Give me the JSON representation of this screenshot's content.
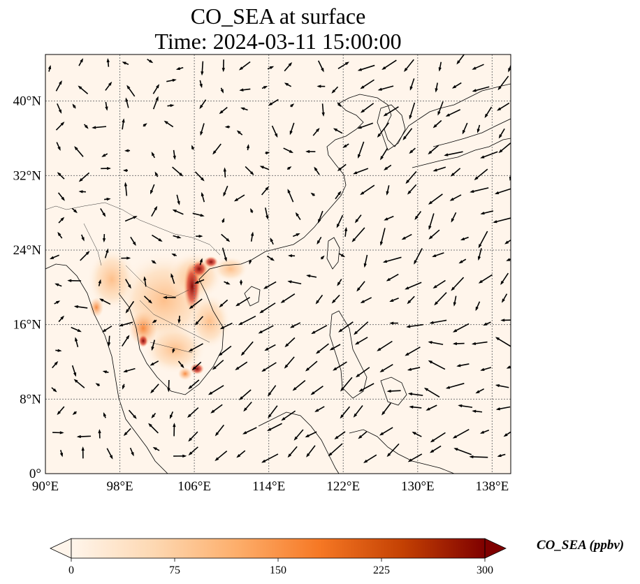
{
  "title": "CO_SEA at surface",
  "subtitle": "Time: 2024-03-11 15:00:00",
  "map": {
    "lon_range": [
      90,
      140
    ],
    "lat_range": [
      0,
      45
    ],
    "lon_ticks": [
      "90°E",
      "98°E",
      "106°E",
      "114°E",
      "122°E",
      "130°E",
      "138°E"
    ],
    "lat_ticks": [
      "0°",
      "8°N",
      "16°N",
      "24°N",
      "32°N",
      "40°N"
    ],
    "lon_tick_values": [
      90,
      98,
      106,
      114,
      122,
      130,
      138
    ],
    "lat_tick_values": [
      0,
      8,
      16,
      24,
      32,
      40
    ],
    "gridlines": true,
    "background_color": "#fff5eb"
  },
  "colorbar": {
    "label": "CO_SEA (ppbv)",
    "ticks": [
      "0",
      "75",
      "150",
      "225",
      "300"
    ],
    "min": 0,
    "max": 300,
    "extend": "both",
    "colormap": "OrRd",
    "colors": [
      "#fff5eb",
      "#fdd8b2",
      "#fdae6b",
      "#f67824",
      "#c44103",
      "#7f0000"
    ]
  }
}
